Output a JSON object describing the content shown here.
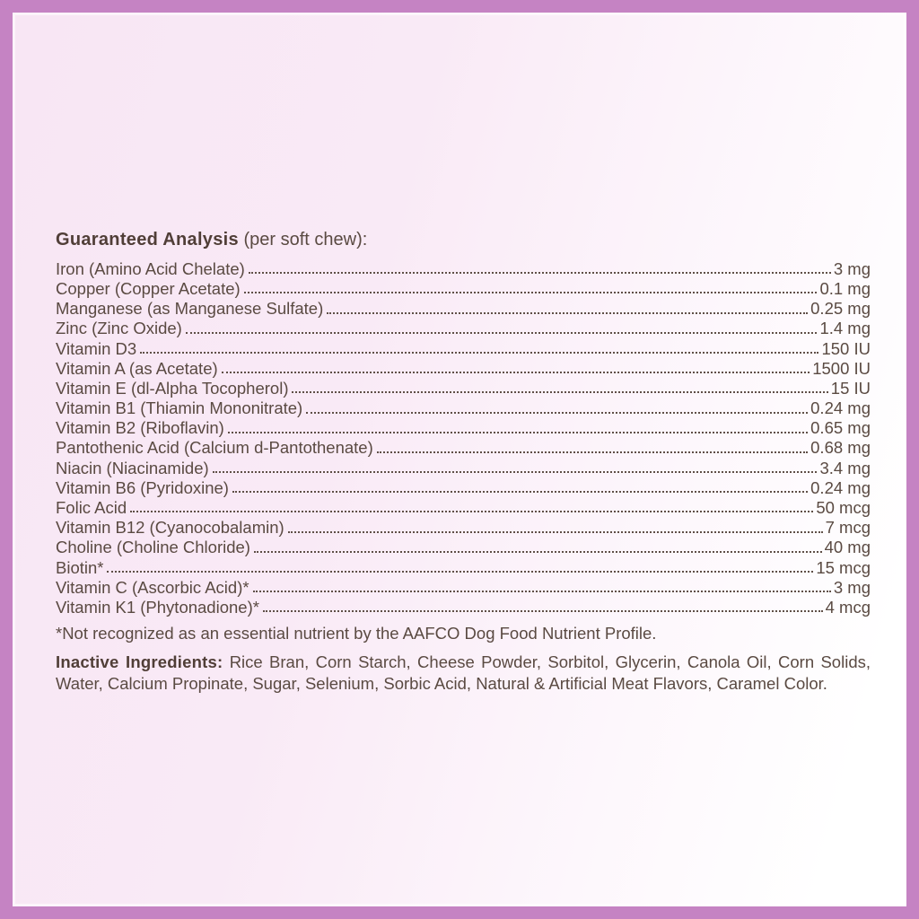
{
  "theme": {
    "border_color": "#c583c3",
    "background_pink": "#f8e6f4",
    "background_white": "#ffffff",
    "text_color": "#5a4a42",
    "heading_color": "#503e37"
  },
  "analysis": {
    "title": "Guaranteed Analysis",
    "title_suffix": " (per soft chew):",
    "rows": [
      {
        "label": "Iron (Amino Acid Chelate)",
        "value": "3 mg"
      },
      {
        "label": "Copper (Copper Acetate)",
        "value": "0.1 mg"
      },
      {
        "label": "Manganese (as Manganese Sulfate)",
        "value": "0.25 mg"
      },
      {
        "label": "Zinc (Zinc Oxide)",
        "value": "1.4 mg"
      },
      {
        "label": "Vitamin D3",
        "value": "150 IU"
      },
      {
        "label": "Vitamin A (as Acetate)",
        "value": "1500 IU"
      },
      {
        "label": "Vitamin E (dl-Alpha Tocopherol)",
        "value": "15 IU"
      },
      {
        "label": "Vitamin B1 (Thiamin Mononitrate)",
        "value": "0.24 mg"
      },
      {
        "label": "Vitamin B2 (Riboflavin)",
        "value": "0.65 mg"
      },
      {
        "label": "Pantothenic Acid (Calcium d-Pantothenate)",
        "value": "0.68 mg"
      },
      {
        "label": "Niacin (Niacinamide)",
        "value": "3.4 mg"
      },
      {
        "label": "Vitamin B6 (Pyridoxine)",
        "value": "0.24 mg"
      },
      {
        "label": "Folic Acid",
        "value": "50 mcg"
      },
      {
        "label": "Vitamin B12 (Cyanocobalamin)",
        "value": "7 mcg"
      },
      {
        "label": "Choline (Choline Chloride)",
        "value": "40 mg"
      },
      {
        "label": "Biotin*",
        "value": "15 mcg"
      },
      {
        "label": "Vitamin C (Ascorbic Acid)*",
        "value": "3 mg"
      },
      {
        "label": "Vitamin K1 (Phytonadione)*",
        "value": "4 mcg"
      }
    ],
    "footnote": "*Not recognized as an essential nutrient by the AAFCO Dog Food Nutrient Profile."
  },
  "inactive": {
    "label": "Inactive Ingredients:",
    "text": "Rice Bran, Corn Starch, Cheese Powder, Sorbitol, Glycerin, Canola Oil, Corn Solids, Water, Calcium Propinate, Sugar, Selenium, Sorbic Acid, Natural & Artificial Meat Flavors, Caramel Color."
  }
}
